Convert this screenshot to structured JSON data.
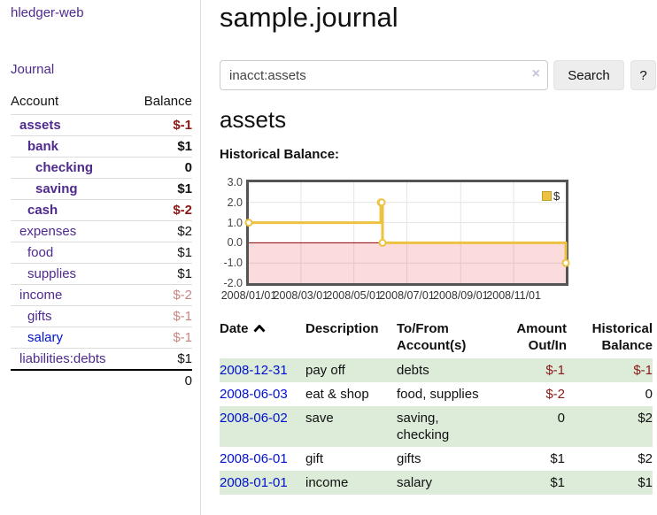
{
  "app": {
    "brand": "hledger-web",
    "nav_journal": "Journal"
  },
  "sidebar": {
    "accounts_header": {
      "account": "Account",
      "balance": "Balance"
    },
    "accounts": [
      {
        "name": "assets",
        "balance": "$-1",
        "depth": 1,
        "bold": true,
        "link": "purple",
        "tone": "neg-strong"
      },
      {
        "name": "bank",
        "balance": "$1",
        "depth": 2,
        "bold": true,
        "link": "purple",
        "tone": "plain"
      },
      {
        "name": "checking",
        "balance": "0",
        "depth": 3,
        "bold": true,
        "link": "purple",
        "tone": "plain"
      },
      {
        "name": "saving",
        "balance": "$1",
        "depth": 3,
        "bold": true,
        "link": "purple",
        "tone": "plain"
      },
      {
        "name": "cash",
        "balance": "$-2",
        "depth": 2,
        "bold": true,
        "link": "purple",
        "tone": "neg-strong"
      },
      {
        "name": "expenses",
        "balance": "$2",
        "depth": 1,
        "bold": false,
        "link": "purple",
        "tone": "plain"
      },
      {
        "name": "food",
        "balance": "$1",
        "depth": 2,
        "bold": false,
        "link": "purple",
        "tone": "plain"
      },
      {
        "name": "supplies",
        "balance": "$1",
        "depth": 2,
        "bold": false,
        "link": "purple",
        "tone": "plain"
      },
      {
        "name": "income",
        "balance": "$-2",
        "depth": 1,
        "bold": false,
        "link": "purple",
        "tone": "neg-faded"
      },
      {
        "name": "gifts",
        "balance": "$-1",
        "depth": 2,
        "bold": false,
        "link": "purple",
        "tone": "neg-faded"
      },
      {
        "name": "salary",
        "balance": "$-1",
        "depth": 2,
        "bold": false,
        "link": "blue",
        "tone": "neg-faded"
      },
      {
        "name": "liabilities:debts",
        "balance": "$1",
        "depth": 1,
        "bold": false,
        "link": "purple",
        "tone": "plain"
      }
    ],
    "total": "0"
  },
  "main": {
    "title": "sample.journal",
    "search": {
      "value": "inacct:assets",
      "clear_icon": "×",
      "button": "Search",
      "help_button": "?"
    },
    "account_heading": "assets",
    "chart_label": "Historical Balance:"
  },
  "chart_data": {
    "type": "line",
    "title": "Historical Balance",
    "step": true,
    "series": [
      {
        "name": "$",
        "color": "#edc240",
        "points": [
          {
            "date": "2008-01-01",
            "value": 1
          },
          {
            "date": "2008-06-01",
            "value": 2
          },
          {
            "date": "2008-06-02",
            "value": 2
          },
          {
            "date": "2008-06-03",
            "value": 0
          },
          {
            "date": "2008-12-31",
            "value": -1
          }
        ]
      }
    ],
    "x_range": [
      "2008-01-01",
      "2008-12-31"
    ],
    "x_tick_labels": [
      "2008/01/01",
      "2008/03/01",
      "2008/05/01",
      "2008/07/01",
      "2008/09/01",
      "2008/11/01"
    ],
    "y_ticks": [
      3.0,
      2.0,
      1.0,
      0.0,
      -1.0,
      -2.0
    ],
    "ylim": [
      -2,
      3
    ],
    "grid": true,
    "legend_position": "top-right",
    "zero_line_color": "#8b0000",
    "negative_fill": "#fbdbdb"
  },
  "register": {
    "headers": {
      "date": "Date",
      "description": "Description",
      "accounts": "To/From Account(s)",
      "amount": "Amount Out/In",
      "balance": "Historical Balance"
    },
    "rows": [
      {
        "date": "2008-12-31",
        "description": "pay off",
        "accounts": "debts",
        "amount": "$-1",
        "balance": "$-1"
      },
      {
        "date": "2008-06-03",
        "description": "eat & shop",
        "accounts": "food, supplies",
        "amount": "$-2",
        "balance": "0"
      },
      {
        "date": "2008-06-02",
        "description": "save",
        "accounts": "saving, checking",
        "amount": "0",
        "balance": "$2"
      },
      {
        "date": "2008-06-01",
        "description": "gift",
        "accounts": "gifts",
        "amount": "$1",
        "balance": "$2"
      },
      {
        "date": "2008-01-01",
        "description": "income",
        "accounts": "salary",
        "amount": "$1",
        "balance": "$1"
      }
    ]
  }
}
